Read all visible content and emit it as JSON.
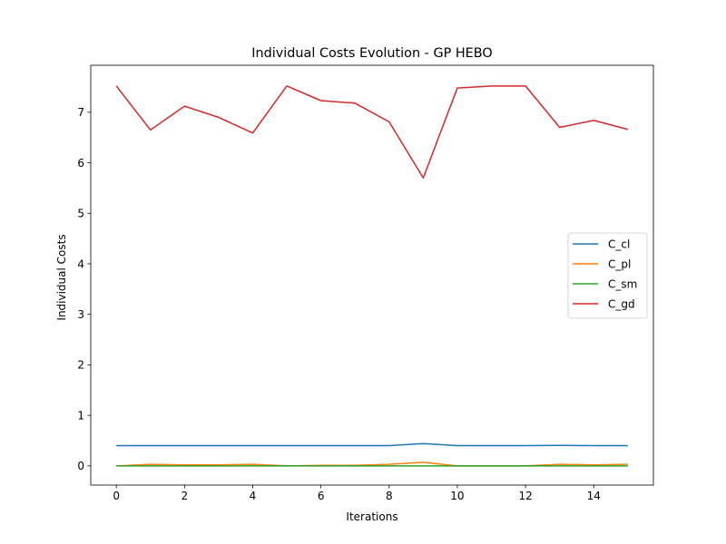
{
  "chart_data": {
    "type": "line",
    "title": "Individual Costs Evolution - GP HEBO",
    "xlabel": "Iterations",
    "ylabel": "Individual Costs",
    "xlim": [
      -0.75,
      15.75
    ],
    "ylim": [
      -0.38,
      7.93
    ],
    "xticks": [
      0,
      2,
      4,
      6,
      8,
      10,
      12,
      14
    ],
    "yticks": [
      0,
      1,
      2,
      3,
      4,
      5,
      6,
      7
    ],
    "grid": false,
    "legend_position": "center-right",
    "x": [
      0,
      1,
      2,
      3,
      4,
      5,
      6,
      7,
      8,
      9,
      10,
      11,
      12,
      13,
      14,
      15
    ],
    "series": [
      {
        "name": "C_cl",
        "color": "#1f77b4",
        "values": [
          0.4,
          0.4,
          0.4,
          0.4,
          0.4,
          0.4,
          0.4,
          0.4,
          0.4,
          0.44,
          0.4,
          0.4,
          0.4,
          0.405,
          0.4,
          0.4
        ]
      },
      {
        "name": "C_pl",
        "color": "#ff7f0e",
        "values": [
          0.0,
          0.03,
          0.02,
          0.02,
          0.03,
          0.0,
          0.01,
          0.01,
          0.03,
          0.07,
          0.0,
          0.0,
          0.0,
          0.03,
          0.02,
          0.03
        ]
      },
      {
        "name": "C_sm",
        "color": "#2ca02c",
        "values": [
          0.0,
          0.0,
          0.0,
          0.0,
          0.0,
          0.0,
          0.0,
          0.0,
          0.0,
          0.0,
          0.0,
          0.0,
          0.0,
          0.0,
          0.0,
          0.0
        ]
      },
      {
        "name": "C_gd",
        "color": "#d62728",
        "values": [
          7.52,
          6.65,
          7.12,
          6.9,
          6.59,
          7.52,
          7.23,
          7.18,
          6.81,
          5.7,
          7.48,
          7.52,
          7.52,
          6.7,
          6.84,
          6.66
        ]
      }
    ]
  }
}
